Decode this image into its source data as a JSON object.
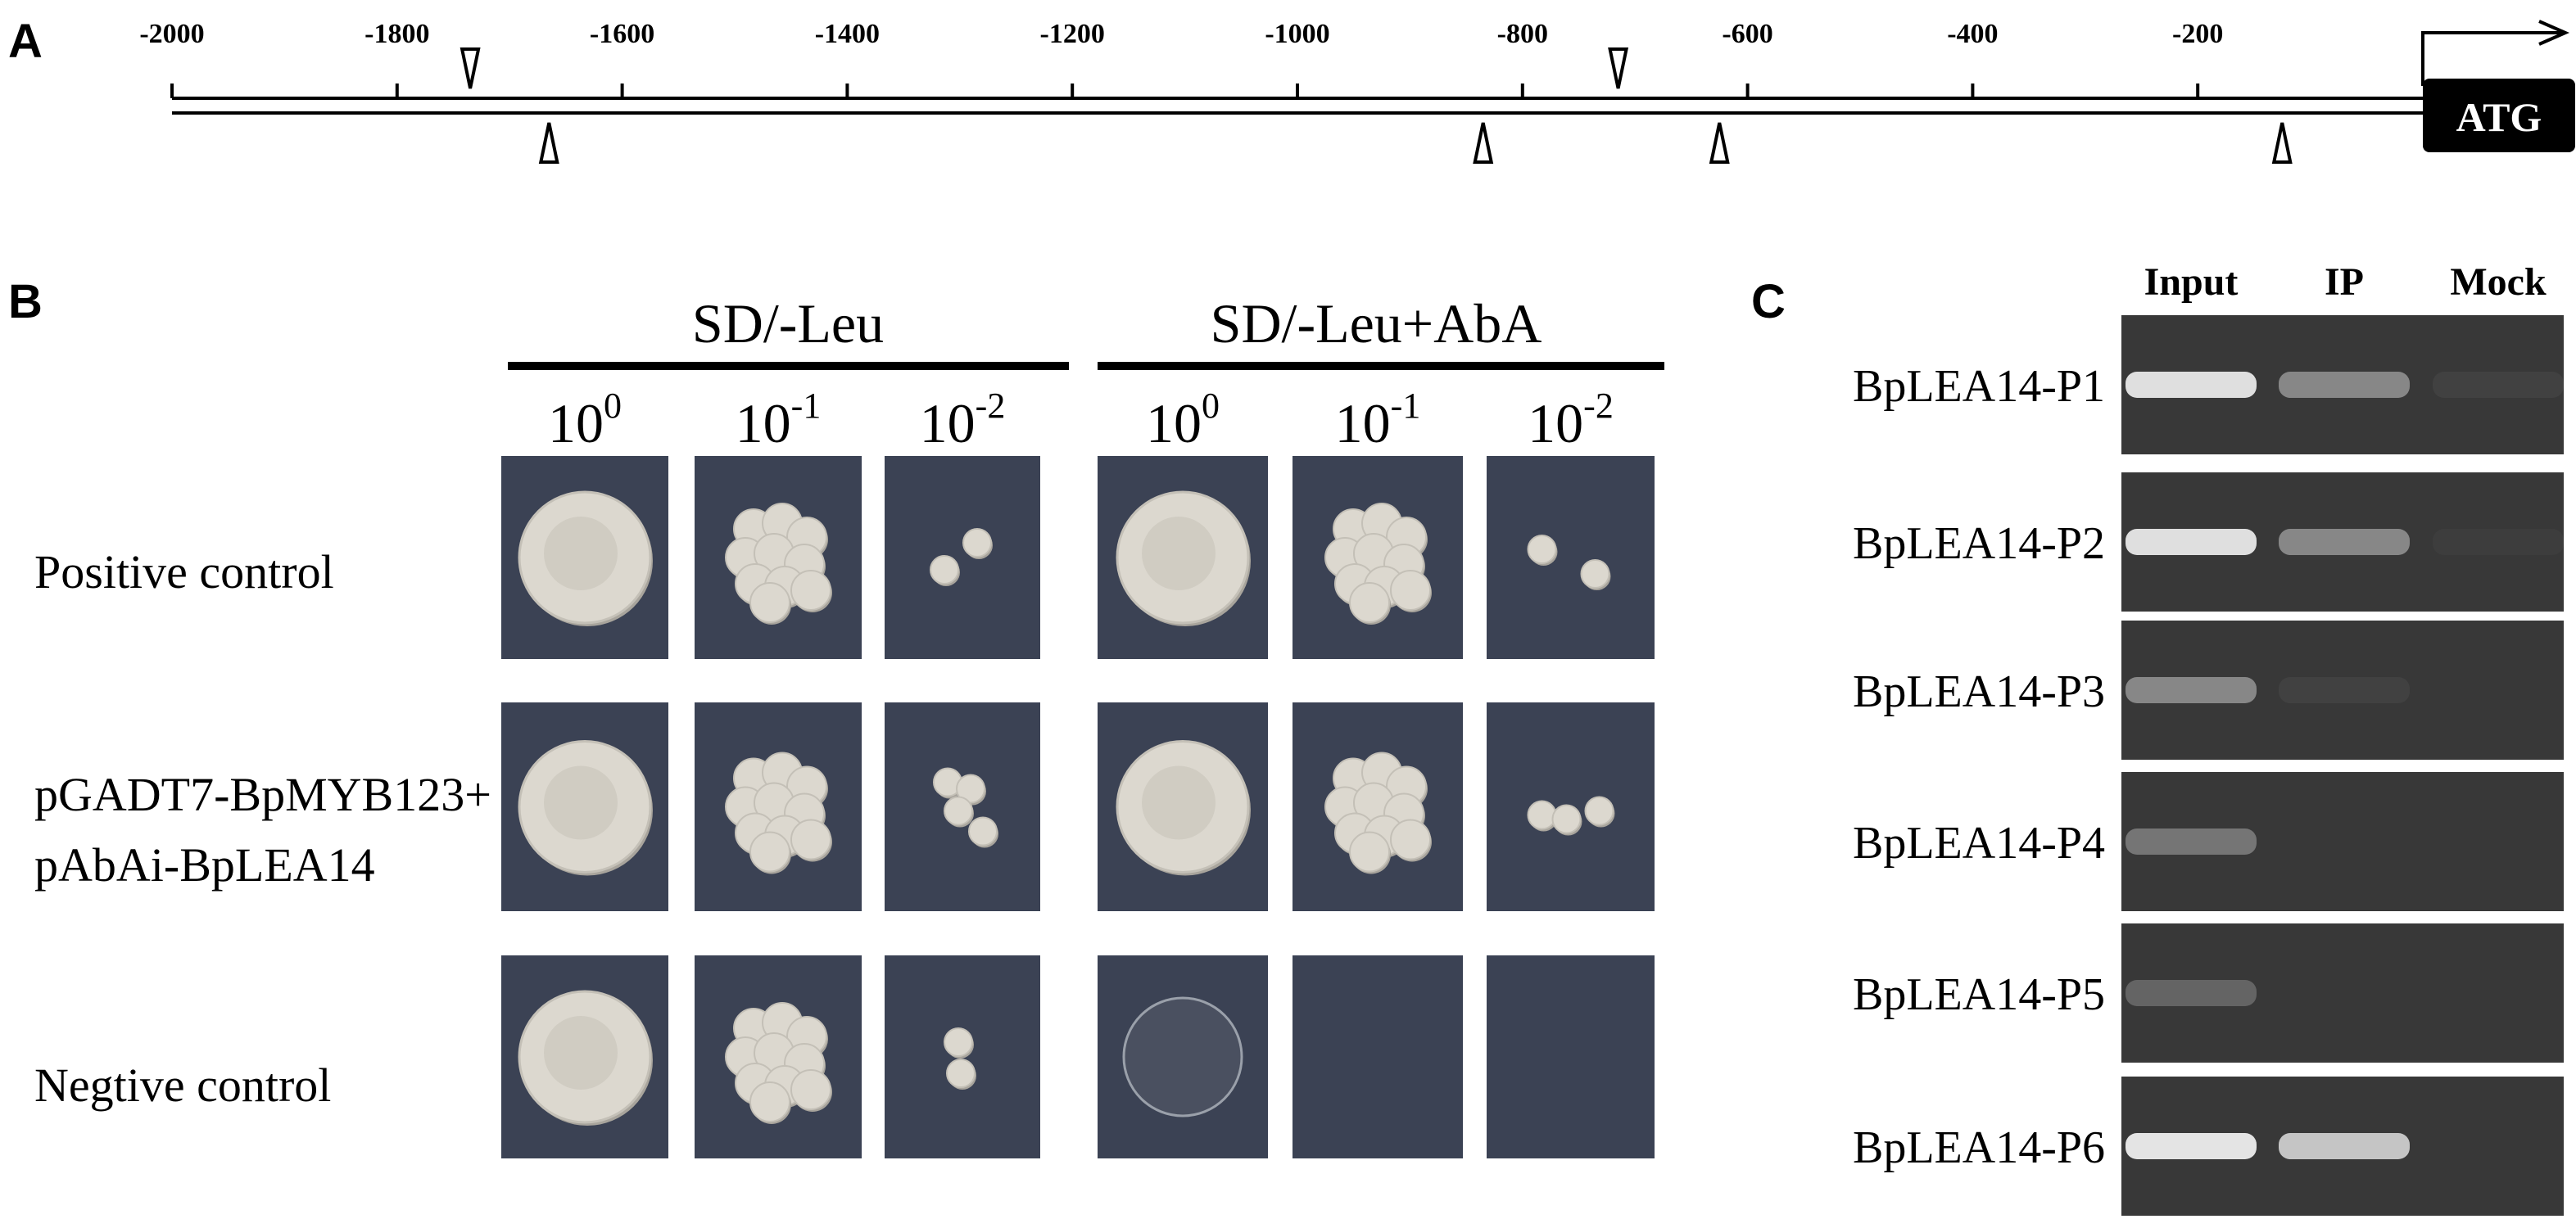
{
  "panel_a": {
    "label": "A",
    "ticks": [
      "-2000",
      "-1800",
      "-1600",
      "-1400",
      "-1200",
      "-1000",
      "-800",
      "-600",
      "-400",
      "-200"
    ],
    "tick_values": [
      -2000,
      -1800,
      -1600,
      -1400,
      -1200,
      -1000,
      -800,
      -600,
      -400,
      -200
    ],
    "axis_range": [
      -2000,
      0
    ],
    "start_codon": "ATG",
    "sites_top": [
      -1735,
      -715
    ],
    "sites_bottom": [
      -1665,
      -835,
      -625,
      -125
    ]
  },
  "panel_b": {
    "label": "B",
    "media": [
      "SD/-Leu",
      "SD/-Leu+AbA"
    ],
    "dilutions": [
      {
        "base": "10",
        "exp": "0"
      },
      {
        "base": "10",
        "exp": "-1"
      },
      {
        "base": "10",
        "exp": "-2"
      }
    ],
    "rows": [
      {
        "label_lines": [
          "Positive control"
        ]
      },
      {
        "label_lines": [
          "pGADT7-BpMYB123+",
          "pAbAi-BpLEA14"
        ]
      },
      {
        "label_lines": [
          "Negtive control"
        ]
      }
    ],
    "colors": {
      "plate": "#3b4254",
      "colony": "#dcd8cf",
      "colony_shadow": "#a8a49c"
    }
  },
  "panel_c": {
    "label": "C",
    "columns": [
      "Input",
      "IP",
      "Mock"
    ],
    "rows": [
      "BpLEA14-P1",
      "BpLEA14-P2",
      "BpLEA14-P3",
      "BpLEA14-P4",
      "BpLEA14-P5",
      "BpLEA14-P6"
    ],
    "band_intensity": [
      [
        0.95,
        0.45,
        0.05
      ],
      [
        0.95,
        0.45,
        0.03
      ],
      [
        0.45,
        0.05,
        0.0
      ],
      [
        0.35,
        0.0,
        0.0
      ],
      [
        0.25,
        0.0,
        0.0
      ],
      [
        0.98,
        0.8,
        0.0
      ]
    ],
    "colors": {
      "gel": "#383838",
      "band": "#e8e8e8"
    }
  }
}
